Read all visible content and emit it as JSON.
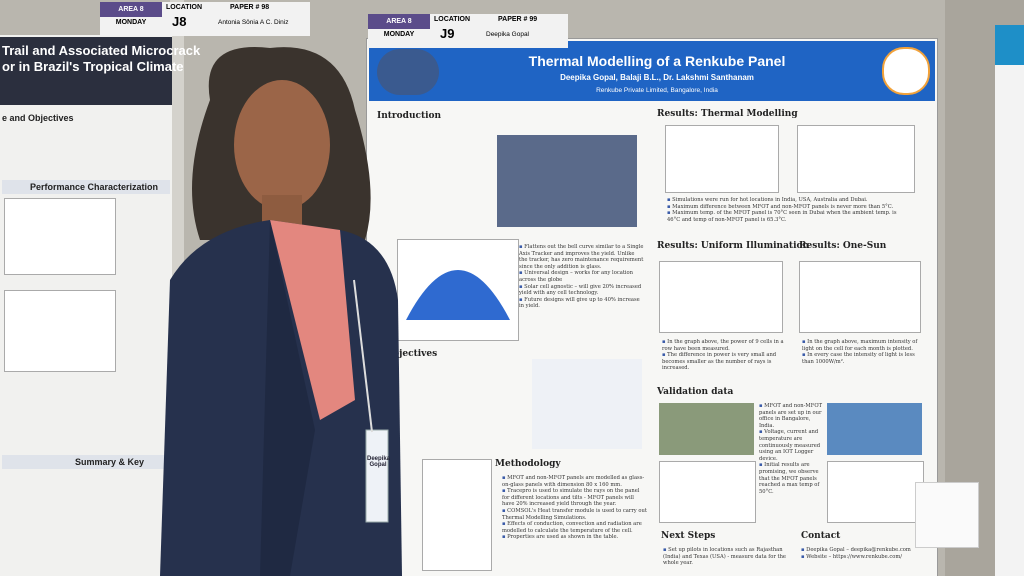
{
  "left_poster": {
    "tag": {
      "area": "AREA 8",
      "day": "MONDAY",
      "location_label": "LOCATION",
      "location": "J8",
      "paper": "PAPER # 98",
      "author": "Antonia Sônia A C. Diniz"
    },
    "title_lines": [
      "Trail and Associated Microcrack",
      "or in Brazil's Tropical Climate"
    ],
    "sections": [
      "e and Objectives",
      "Performance Characterization",
      "Summary & Key"
    ]
  },
  "main_poster": {
    "tag": {
      "area": "AREA 8",
      "day": "MONDAY",
      "location_label": "LOCATION",
      "location": "J9",
      "paper": "PAPER # 99",
      "author": "Deepika Gopal"
    },
    "title": "Thermal Modelling of a Renkube Panel",
    "authors": "Deepika Gopal, Balaji B.L., Dr. Lakshmi Santhanam",
    "affiliation": "Renkube Private Limited, Bangalore, India",
    "headings": {
      "introduction": "Introduction",
      "objectives": "Objectives",
      "methodology": "Methodology",
      "thermal": "Results: Thermal Modelling",
      "uniform": "Results: Uniform Illumination",
      "one_sun": "Results: One-Sun",
      "validation": "Validation data",
      "next_steps": "Next Steps",
      "contact": "Contact"
    },
    "intro_bullets": [
      "Flattens out the bell curve similar to a Single Axis Tracker and improves the yield. Unlike the tracker, has zero maintenance requirement since the only addition is glass.",
      "Universal design – works for any location across the globe",
      "Solar cell agnostic – will give 20% increased yield with any cell technology.",
      "Future designs will give up to 40% increase in yield."
    ],
    "thermal_bullets": [
      "Simulations were run for hot locations in India, USA, Australia and Dubai.",
      "Maximum difference between MFOT and non-MFOT panels is never more than 5°C.",
      "Maximum temp. of the MFOT panel is 70°C seen in Dubai when the ambient temp. is 46°C and temp of non-MFOT panel is 65.3°C."
    ],
    "uniform_bullets": [
      "In the graph above, the power of 9 cells in a row have been measured.",
      "The difference in power is very small and becomes smaller as the number of rays is increased."
    ],
    "one_sun_bullets": [
      "In the graph above, maximum intensity of light on the cell for each month is plotted.",
      "In every case the intensity of light is less than 1000W/m²."
    ],
    "validation_bullets": [
      "MFOT and non-MFOT panels are set up in our office in Bangalore, India.",
      "Voltage, current and temperature are continuously measured using an IOT Logger device.",
      "Initial results are promising, we observe that the MFOT panels reached a max temp of 50°C."
    ],
    "methodology_bullets": [
      "MFOT and non-MFOT panels are modelled as glass-on-glass panels with dimension 80 x 160 mm.",
      "Tracepro is used to simulate the rays on the panel for different locations and tilts - MFOT panels will have 20% increased yield through the year.",
      "COMSOL's Heat transfer module is used to carry out Thermal Modelling Simulations.",
      "Effects of conduction, convection and radiation are modelled to calculate the temperature of the cell.",
      "Properties are used as shown in the table."
    ],
    "next_steps_bullets": [
      "Set up pilots in locations such as Rajasthan (India) and Texas (USA) - measure data for the whole year."
    ],
    "contact_bullets": [
      "Deepika Gopal – deepika@renkube.com",
      "Website – https://www.renkube.com/"
    ]
  },
  "badge": {
    "name": "Deepika Gopal"
  }
}
